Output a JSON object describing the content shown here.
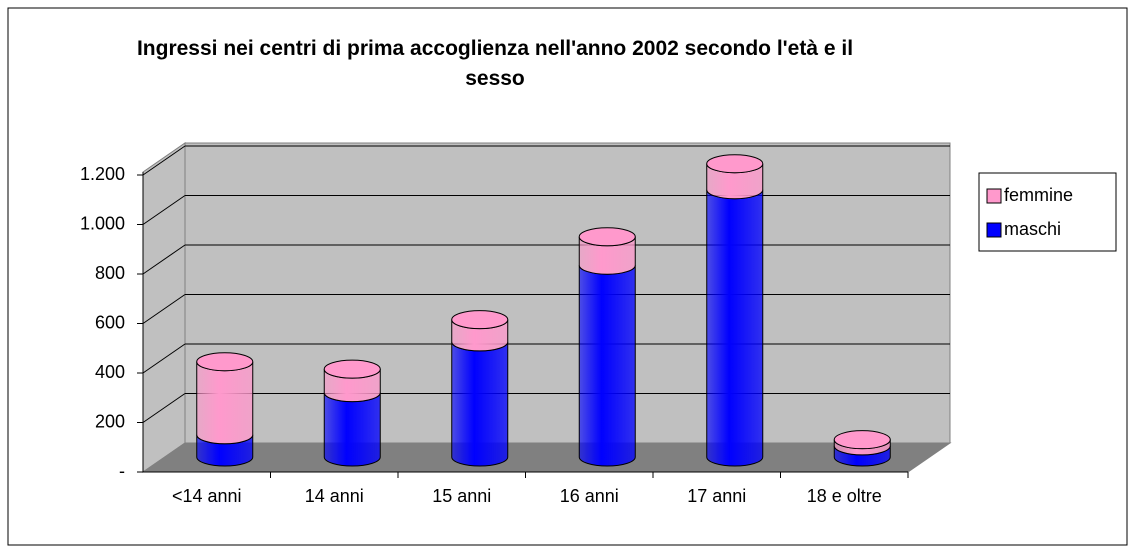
{
  "chart_data": {
    "type": "bar3d_stacked",
    "title": "Ingressi nei centri di prima accoglienza nell'anno 2002 secondo l'età e il sesso",
    "categories": [
      "<14 anni",
      "14 anni",
      "15 anni",
      "16 anni",
      "17 anni",
      "18 e oltre"
    ],
    "series": [
      {
        "name": "maschi",
        "color": "#0000ff",
        "values": [
          90,
          260,
          465,
          775,
          1080,
          45
        ]
      },
      {
        "name": "femmine",
        "color": "#ff99cc",
        "values": [
          295,
          95,
          90,
          115,
          105,
          25
        ]
      }
    ],
    "ylim": [
      0,
      1200
    ],
    "yticks": [
      {
        "value": 0,
        "label": "-"
      },
      200,
      400,
      600,
      800,
      {
        "value": 1000,
        "label": "1.000"
      },
      {
        "value": 1200,
        "label": "1.200"
      }
    ],
    "grid": true,
    "legend": "right"
  }
}
